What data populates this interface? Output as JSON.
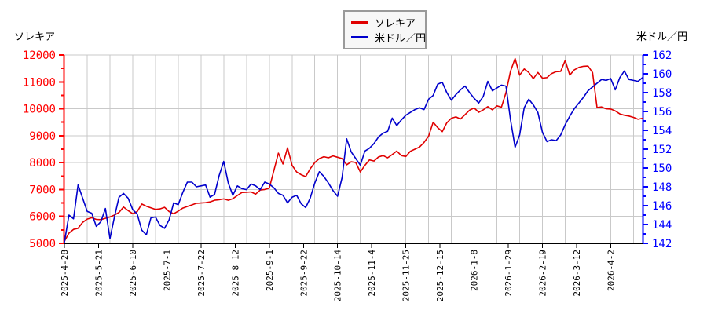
{
  "titles": {
    "left_axis_title": "ソレキア",
    "right_axis_title": "米ドル／円"
  },
  "legend": [
    {
      "label": "ソレキア",
      "color": "#e00000"
    },
    {
      "label": "米ドル／円",
      "color": "#0000cc"
    }
  ],
  "chart_data": {
    "type": "line",
    "title": "",
    "grid": true,
    "legend_position": "top-center",
    "x_axis": {
      "tick_labels": [
        "2025-4-28",
        "2025-5-21",
        "2025-6-10",
        "2025-7-1",
        "2025-7-22",
        "2025-8-12",
        "2025-9-1",
        "2025-9-22",
        "2025-10-14",
        "2025-11-4",
        "2025-11-25",
        "2025-12-15",
        "2026-1-8",
        "2026-1-29",
        "2026-2-19",
        "2026-3-12",
        "2026-4-2"
      ],
      "label_every_days": 15,
      "grid_every_days": 10,
      "total_days": 254,
      "label_color": "#000000",
      "axis_color": "#000000"
    },
    "left_axis": {
      "label": "ソレキア",
      "min": 5000,
      "max": 12000,
      "major_step": 1000,
      "minor_step": 500,
      "tick_labels": [
        "5000",
        "6000",
        "7000",
        "8000",
        "9000",
        "10000",
        "11000",
        "12000"
      ],
      "color": "#ff0000",
      "line_color": "#cc0000"
    },
    "right_axis": {
      "label": "米ドル／円",
      "min": 142,
      "max": 162,
      "major_step": 2,
      "minor_step": 1,
      "tick_labels": [
        "142",
        "144",
        "146",
        "148",
        "150",
        "152",
        "154",
        "156",
        "158",
        "160",
        "162"
      ],
      "color": "#0000ff",
      "line_color": "#0000bb"
    },
    "grid_color": "#c9c9c9",
    "series": [
      {
        "name": "ソレキア",
        "axis": "left",
        "color": "#e00000",
        "sample_interval_trading_days": 2,
        "values": [
          5080,
          5380,
          5520,
          5560,
          5780,
          5900,
          5950,
          5890,
          5880,
          5930,
          5980,
          6050,
          6150,
          6350,
          6220,
          6100,
          6180,
          6460,
          6380,
          6320,
          6260,
          6280,
          6340,
          6180,
          6100,
          6200,
          6310,
          6370,
          6430,
          6490,
          6500,
          6510,
          6540,
          6600,
          6620,
          6650,
          6600,
          6660,
          6780,
          6890,
          6900,
          6910,
          6830,
          6980,
          7000,
          7050,
          7700,
          8350,
          7950,
          8550,
          7900,
          7650,
          7550,
          7480,
          7770,
          8000,
          8150,
          8220,
          8180,
          8250,
          8200,
          8150,
          7920,
          8030,
          8000,
          7650,
          7900,
          8100,
          8060,
          8210,
          8260,
          8180,
          8300,
          8430,
          8260,
          8230,
          8420,
          8500,
          8580,
          8750,
          8980,
          9500,
          9300,
          9150,
          9480,
          9650,
          9700,
          9620,
          9780,
          9950,
          10030,
          9870,
          9960,
          10080,
          9960,
          10110,
          10060,
          10600,
          11400,
          11870,
          11250,
          11480,
          11350,
          11120,
          11350,
          11140,
          11160,
          11310,
          11380,
          11390,
          11800,
          11250,
          11450,
          11540,
          11580,
          11590,
          11350,
          10050,
          10070,
          10000,
          9990,
          9920,
          9810,
          9760,
          9730,
          9680,
          9610,
          9650
        ]
      },
      {
        "name": "米ドル／円",
        "axis": "right",
        "color": "#0000cc",
        "sample_interval_trading_days": 2,
        "values": [
          142.1,
          145.0,
          144.6,
          148.2,
          146.8,
          145.4,
          145.2,
          143.8,
          144.3,
          145.7,
          142.5,
          144.8,
          146.9,
          147.3,
          146.8,
          145.6,
          145.1,
          143.4,
          142.9,
          144.7,
          144.8,
          143.9,
          143.6,
          144.5,
          146.3,
          146.1,
          147.4,
          148.5,
          148.5,
          148.0,
          148.1,
          148.2,
          146.9,
          147.2,
          149.2,
          150.7,
          148.4,
          147.1,
          148.1,
          147.8,
          147.7,
          148.3,
          148.1,
          147.7,
          148.5,
          148.3,
          147.9,
          147.3,
          147.1,
          146.3,
          146.9,
          147.1,
          146.2,
          145.8,
          146.8,
          148.4,
          149.6,
          149.1,
          148.4,
          147.6,
          147.0,
          149.0,
          153.1,
          151.7,
          151.0,
          150.3,
          151.8,
          152.1,
          152.6,
          153.3,
          153.7,
          153.9,
          155.3,
          154.5,
          155.1,
          155.6,
          155.9,
          156.2,
          156.4,
          156.2,
          157.3,
          157.7,
          158.9,
          159.1,
          158.0,
          157.2,
          157.8,
          158.3,
          158.7,
          158.0,
          157.4,
          156.9,
          157.6,
          159.2,
          158.2,
          158.5,
          158.8,
          158.7,
          155.1,
          152.2,
          153.5,
          156.4,
          157.3,
          156.7,
          155.9,
          153.8,
          152.8,
          153.0,
          152.9,
          153.5,
          154.6,
          155.5,
          156.3,
          156.9,
          157.5,
          158.2,
          158.6,
          159.0,
          159.4,
          159.3,
          159.5,
          158.3,
          159.6,
          160.3,
          159.4,
          159.3,
          159.2,
          159.6
        ]
      }
    ]
  }
}
